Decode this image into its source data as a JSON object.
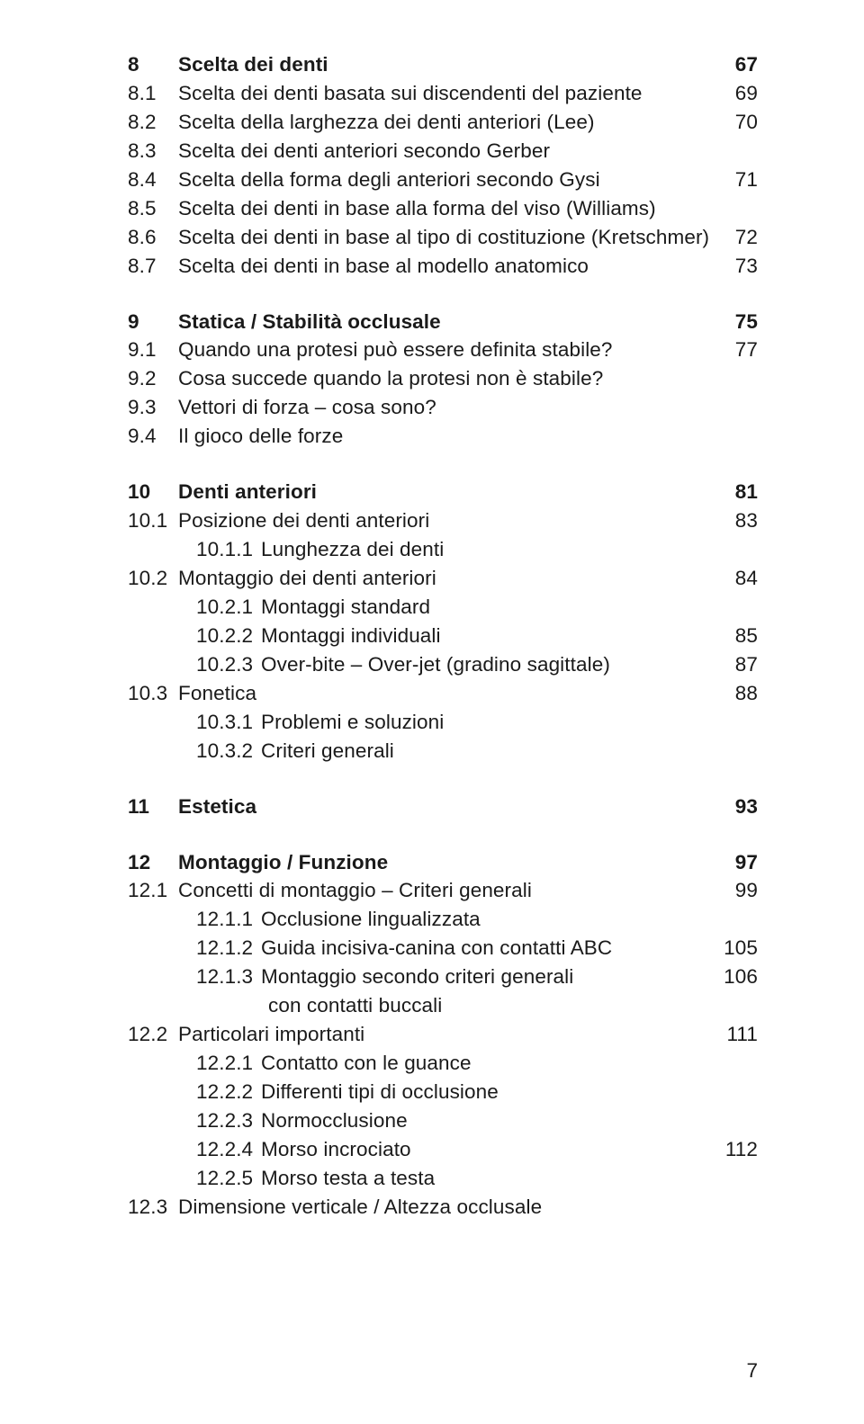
{
  "text_color": "#1a1a1a",
  "background_color": "#ffffff",
  "font_family": "Helvetica Neue",
  "base_fontsize_pt": 17,
  "page_number": "7",
  "sections": {
    "s8": {
      "num": "8",
      "title": "Scelta dei denti",
      "page": "67",
      "items": [
        {
          "num": "8.1",
          "title": "Scelta dei denti basata sui discendenti del paziente",
          "page": "69"
        },
        {
          "num": "8.2",
          "title": "Scelta della larghezza dei denti anteriori (Lee)",
          "page": "70"
        },
        {
          "num": "8.3",
          "title": "Scelta dei denti anteriori secondo Gerber",
          "page": ""
        },
        {
          "num": "8.4",
          "title": "Scelta della forma degli anteriori secondo Gysi",
          "page": "71"
        },
        {
          "num": "8.5",
          "title": "Scelta dei denti in base alla forma del viso (Williams)",
          "page": ""
        },
        {
          "num": "8.6",
          "title": "Scelta dei denti in base al tipo di costituzione (Kretschmer)",
          "page": "72"
        },
        {
          "num": "8.7",
          "title": "Scelta dei denti in base al modello anatomico",
          "page": "73"
        }
      ]
    },
    "s9": {
      "num": "9",
      "title": "Statica / Stabilità occlusale",
      "page": "75",
      "items": [
        {
          "num": "9.1",
          "title": "Quando una protesi può essere definita stabile?",
          "page": "77"
        },
        {
          "num": "9.2",
          "title": "Cosa succede quando la protesi non è stabile?",
          "page": ""
        },
        {
          "num": "9.3",
          "title": "Vettori di forza – cosa sono?",
          "page": ""
        },
        {
          "num": "9.4",
          "title": "Il gioco delle forze",
          "page": ""
        }
      ]
    },
    "s10": {
      "num": "10",
      "title": "Denti anteriori",
      "page": "81",
      "items": [
        {
          "num": "10.1",
          "title": "Posizione dei denti anteriori",
          "page": "83",
          "sub": [
            {
              "num": "10.1.1",
              "title": "Lunghezza dei denti",
              "page": ""
            }
          ]
        },
        {
          "num": "10.2",
          "title": "Montaggio dei denti anteriori",
          "page": "84",
          "sub": [
            {
              "num": "10.2.1",
              "title": "Montaggi standard",
              "page": ""
            },
            {
              "num": "10.2.2",
              "title": "Montaggi individuali",
              "page": "85"
            },
            {
              "num": "10.2.3",
              "title": "Over-bite – Over-jet (gradino sagittale)",
              "page": "87"
            }
          ]
        },
        {
          "num": "10.3",
          "title": "Fonetica",
          "page": "88",
          "sub": [
            {
              "num": "10.3.1",
              "title": "Problemi e soluzioni",
              "page": ""
            },
            {
              "num": "10.3.2",
              "title": "Criteri generali",
              "page": ""
            }
          ]
        }
      ]
    },
    "s11": {
      "num": "11",
      "title": "Estetica",
      "page": "93"
    },
    "s12": {
      "num": "12",
      "title": "Montaggio / Funzione",
      "page": "97",
      "items": [
        {
          "num": "12.1",
          "title": "Concetti di montaggio – Criteri generali",
          "page": "99",
          "sub": [
            {
              "num": "12.1.1",
              "title": "Occlusione lingualizzata",
              "page": ""
            },
            {
              "num": "12.1.2",
              "title": "Guida incisiva-canina con contatti ABC",
              "page": "105"
            },
            {
              "num": "12.1.3",
              "title": "Montaggio secondo criteri generali",
              "page": "106",
              "cont": "con contatti buccali"
            }
          ]
        },
        {
          "num": "12.2",
          "title": "Particolari importanti",
          "page": "111",
          "sub": [
            {
              "num": "12.2.1",
              "title": "Contatto con le guance",
              "page": ""
            },
            {
              "num": "12.2.2",
              "title": "Differenti tipi di occlusione",
              "page": ""
            },
            {
              "num": "12.2.3",
              "title": "Normocclusione",
              "page": ""
            },
            {
              "num": "12.2.4",
              "title": "Morso incrociato",
              "page": "112"
            },
            {
              "num": "12.2.5",
              "title": "Morso testa a testa",
              "page": ""
            }
          ]
        },
        {
          "num": "12.3",
          "title": "Dimensione verticale / Altezza occlusale",
          "page": ""
        }
      ]
    }
  }
}
